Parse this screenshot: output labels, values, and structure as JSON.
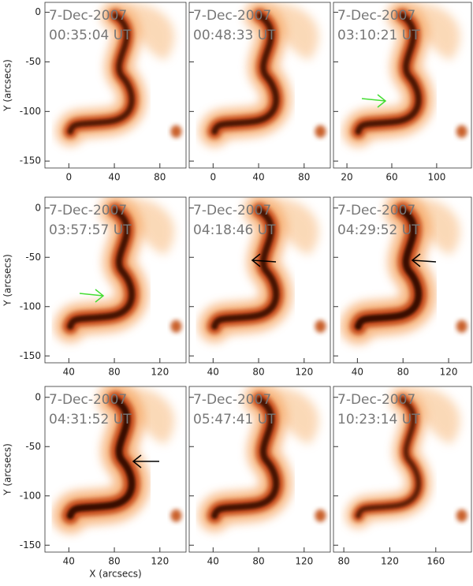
{
  "chart_data": [
    {
      "type": "image",
      "date": "7-Dec-2007",
      "time": "00:35:04 UT",
      "ylabel": "Y (arcsecs)",
      "xlim": [
        -21,
        103
      ],
      "xticks": [
        0,
        40,
        80
      ],
      "ylim": [
        -157,
        10
      ],
      "yticks": [
        0,
        -50,
        -100,
        -150
      ]
    },
    {
      "type": "image",
      "date": "7-Dec-2007",
      "time": "00:48:33 UT",
      "xlim": [
        -21,
        103
      ],
      "xticks": [
        0,
        40,
        80
      ],
      "ylim": [
        -157,
        10
      ],
      "yticks": [
        0,
        -50,
        -100,
        -150
      ]
    },
    {
      "type": "image",
      "date": "7-Dec-2007",
      "time": "03:10:21 UT",
      "xlim": [
        8,
        131
      ],
      "xticks": [
        20,
        60,
        100
      ],
      "ylim": [
        -157,
        10
      ],
      "yticks": [
        0,
        -50,
        -100,
        -150
      ],
      "arrow_color": "#44dd33"
    },
    {
      "type": "image",
      "date": "7-Dec-2007",
      "time": "03:57:57 UT",
      "ylabel": "Y (arcsecs)",
      "xlim": [
        19,
        143
      ],
      "xticks": [
        40,
        80,
        120
      ],
      "ylim": [
        -157,
        11
      ],
      "yticks": [
        0,
        -50,
        -100,
        -150
      ],
      "arrow_color": "#44dd33"
    },
    {
      "type": "image",
      "date": "7-Dec-2007",
      "time": "04:18:46 UT",
      "xlim": [
        19,
        143
      ],
      "xticks": [
        40,
        80,
        120
      ],
      "ylim": [
        -157,
        11
      ],
      "yticks": [
        0,
        -50,
        -100,
        -150
      ],
      "arrow_color": "#000000"
    },
    {
      "type": "image",
      "date": "7-Dec-2007",
      "time": "04:29:52 UT",
      "xlim": [
        19,
        140
      ],
      "xticks": [
        40,
        80,
        120
      ],
      "ylim": [
        -157,
        11
      ],
      "yticks": [
        0,
        -50,
        -100,
        -150
      ],
      "arrow_color": "#000000"
    },
    {
      "type": "image",
      "date": "7-Dec-2007",
      "time": "04:31:52 UT",
      "ylabel": "Y (arcsecs)",
      "xlabel": "X (arcsecs)",
      "xlim": [
        19,
        143
      ],
      "xticks": [
        40,
        80,
        120
      ],
      "ylim": [
        -157,
        11
      ],
      "yticks": [
        0,
        -50,
        -100,
        -150
      ],
      "arrow_color": "#000000"
    },
    {
      "type": "image",
      "date": "7-Dec-2007",
      "time": "05:47:41 UT",
      "xlim": [
        19,
        143
      ],
      "xticks": [
        40,
        80,
        120
      ],
      "ylim": [
        -157,
        11
      ],
      "yticks": [
        0,
        -50,
        -100,
        -150
      ]
    },
    {
      "type": "image",
      "date": "7-Dec-2007",
      "time": "10:23:14 UT",
      "xlim": [
        71,
        191
      ],
      "xticks": [
        80,
        120,
        160
      ],
      "ylim": [
        -157,
        11
      ],
      "yticks": [
        0,
        -50,
        -100,
        -150
      ]
    }
  ]
}
